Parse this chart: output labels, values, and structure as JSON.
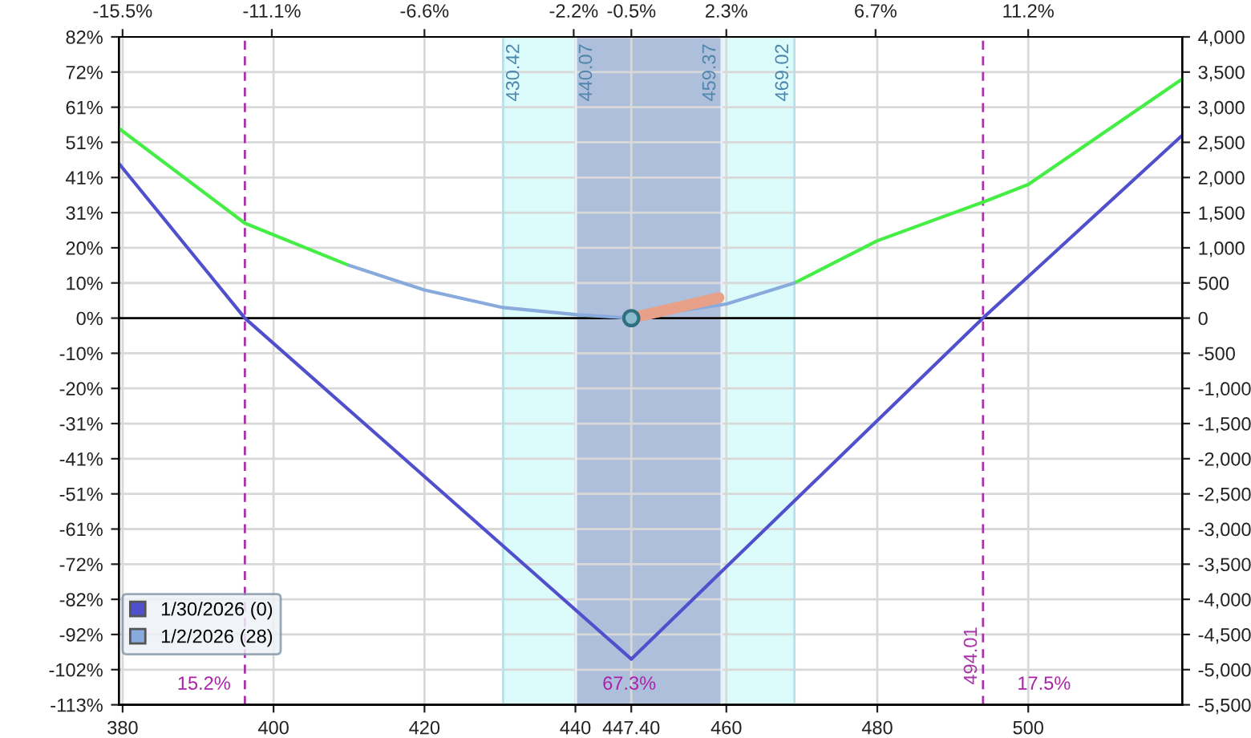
{
  "chart_data": {
    "type": "line",
    "x": [
      379.5,
      396.2,
      410,
      420,
      430.42,
      440,
      447.4,
      460,
      469.02,
      480,
      494.0,
      500,
      520.4
    ],
    "series": [
      {
        "name": "1/30/2026 (0)",
        "color": "#5050cc",
        "axis": "y2",
        "x": [
          379.5,
          396.2,
          447.4,
          494.0,
          520.4
        ],
        "values": [
          2200,
          0,
          -4850,
          0,
          2600
        ]
      },
      {
        "color": "#44ee44",
        "axis": "y2",
        "values": [
          2700,
          1350,
          750,
          null,
          null,
          null,
          null,
          null,
          500,
          1100,
          1650,
          1900,
          3400
        ]
      },
      {
        "name": "1/2/2026 (28)",
        "color": "#88aadd",
        "axis": "y2",
        "values": [
          null,
          null,
          750,
          400,
          150,
          50,
          0,
          200,
          500,
          null,
          null,
          null,
          null
        ]
      },
      {
        "color": "#e8a088",
        "axis": "y2",
        "x": [
          447.4,
          459
        ],
        "values": [
          0,
          290
        ]
      },
      {
        "type": "scatter",
        "marker": "circle",
        "color": "#2f6f7f",
        "axis": "y2",
        "x": [
          447.4
        ],
        "values": [
          0
        ]
      }
    ],
    "xlim": [
      379.5,
      520.4
    ],
    "xticks": [
      380,
      400,
      420,
      440,
      {
        "value": 447.4,
        "label": "447.40"
      },
      460,
      480,
      500
    ],
    "x2lim": [
      -15.61,
      15.74
    ],
    "x2ticks": [
      {
        "value": -15.5,
        "label": "-15.5%"
      },
      {
        "value": -11.1,
        "label": "-11.1%"
      },
      {
        "value": -6.6,
        "label": "-6.6%"
      },
      {
        "value": -2.2,
        "label": "-2.2%"
      },
      {
        "value": -0.5,
        "label": "-0.5%"
      },
      {
        "value": 2.3,
        "label": "2.3%"
      },
      {
        "value": 6.7,
        "label": "6.7%"
      },
      {
        "value": 11.2,
        "label": "11.2%"
      }
    ],
    "ylim": [
      -112.75,
      82
    ],
    "yticks": [
      {
        "value": 82,
        "label": "82%"
      },
      {
        "value": 71.75,
        "label": "72%"
      },
      {
        "value": 61.5,
        "label": "61%"
      },
      {
        "value": 51.25,
        "label": "51%"
      },
      {
        "value": 41,
        "label": "41%"
      },
      {
        "value": 30.75,
        "label": "31%"
      },
      {
        "value": 20.5,
        "label": "20%"
      },
      {
        "value": 10.25,
        "label": "10%"
      },
      {
        "value": 0,
        "label": "0%"
      },
      {
        "value": -10.25,
        "label": "-10%"
      },
      {
        "value": -20.5,
        "label": "-20%"
      },
      {
        "value": -30.75,
        "label": "-31%"
      },
      {
        "value": -41,
        "label": "-41%"
      },
      {
        "value": -51.25,
        "label": "-51%"
      },
      {
        "value": -61.5,
        "label": "-61%"
      },
      {
        "value": -71.75,
        "label": "-72%"
      },
      {
        "value": -82,
        "label": "-82%"
      },
      {
        "value": -92.25,
        "label": "-92%"
      },
      {
        "value": -102.5,
        "label": "-102%"
      },
      {
        "value": -112.75,
        "label": "-113%"
      }
    ],
    "y2lim": [
      -5500,
      4000
    ],
    "y2ticks": [
      {
        "value": 4000,
        "label": "4,000"
      },
      {
        "value": 3500,
        "label": "3,500"
      },
      {
        "value": 3000,
        "label": "3,000"
      },
      {
        "value": 2500,
        "label": "2,500"
      },
      {
        "value": 2000,
        "label": "2,000"
      },
      {
        "value": 1500,
        "label": "1,500"
      },
      {
        "value": 1000,
        "label": "1,000"
      },
      500,
      0,
      -500,
      {
        "value": -1000,
        "label": "-1,000"
      },
      {
        "value": -1500,
        "label": "-1,500"
      },
      {
        "value": -2000,
        "label": "-2,000"
      },
      {
        "value": -2500,
        "label": "-2,500"
      },
      {
        "value": -3000,
        "label": "-3,000"
      },
      {
        "value": -3500,
        "label": "-3,500"
      },
      {
        "value": -4000,
        "label": "-4,000"
      },
      {
        "value": -4500,
        "label": "-4,500"
      },
      {
        "value": -5000,
        "label": "-5,000"
      },
      {
        "value": -5500,
        "label": "-5,500"
      }
    ],
    "bands": [
      {
        "axis": "x",
        "from": 430.42,
        "to": 469.02,
        "color": "#dcfcfc"
      },
      {
        "axis": "x",
        "from": 440.07,
        "to": 459.37,
        "color": "#aebfdb"
      }
    ],
    "ref_lines": [
      {
        "axis": "y2",
        "value": 0,
        "color": "#000000",
        "line_style": "solid"
      },
      {
        "axis": "x",
        "value": 430.42,
        "label": "430.42",
        "color": "#b8e0e8",
        "line_style": "solid"
      },
      {
        "axis": "x",
        "value": 440.07,
        "label": "440.07",
        "color": "#e8eef8",
        "line_style": "solid"
      },
      {
        "axis": "x",
        "value": 459.37,
        "label": "459.37",
        "color": "#e8eef8",
        "line_style": "solid"
      },
      {
        "axis": "x",
        "value": 469.02,
        "label": "469.02",
        "color": "#b8e0e8",
        "line_style": "solid"
      },
      {
        "axis": "x",
        "value": 396.2,
        "color": "#aa33aa",
        "line_style": "dashed"
      },
      {
        "axis": "x",
        "value": 494.01,
        "label": "494.01",
        "color": "#aa33aa",
        "line_style": "dashed"
      }
    ],
    "annotations": [
      "15.2%",
      "67.3%",
      "17.5%"
    ],
    "grid": true,
    "legend": "bottom left"
  }
}
